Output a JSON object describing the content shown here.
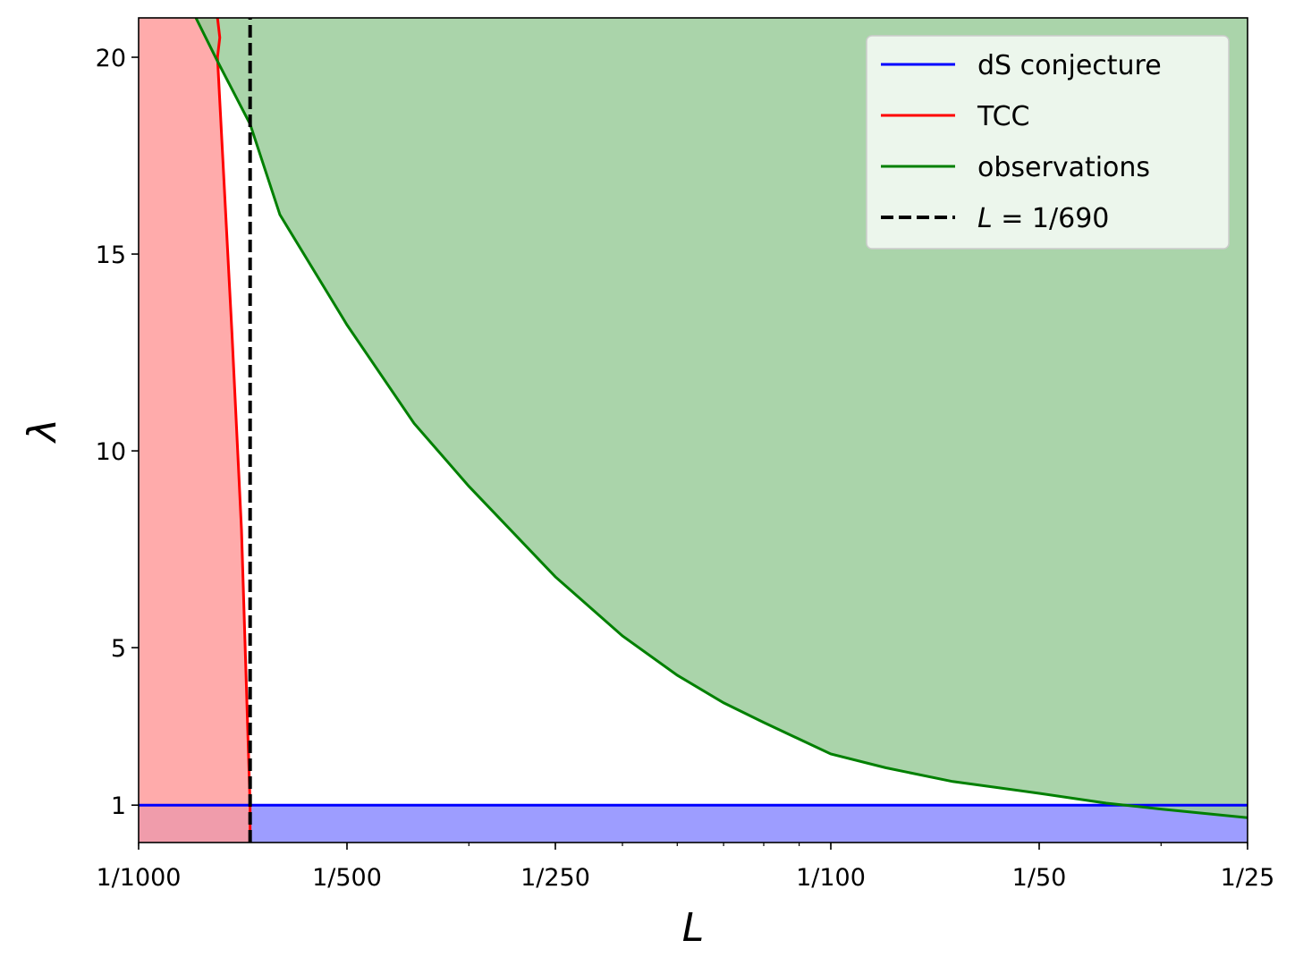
{
  "chart_data": {
    "type": "line",
    "title": "",
    "xlabel": "L",
    "ylabel": "λ",
    "x_scale": "log",
    "xlim": [
      0.001,
      0.04
    ],
    "ylim": [
      0.05,
      21.0
    ],
    "x_ticks": [
      {
        "value": 0.001,
        "label": "1/1000"
      },
      {
        "value": 0.002,
        "label": "1/500"
      },
      {
        "value": 0.004,
        "label": "1/250"
      },
      {
        "value": 0.01,
        "label": "1/100"
      },
      {
        "value": 0.02,
        "label": "1/50"
      },
      {
        "value": 0.04,
        "label": "1/25"
      }
    ],
    "y_ticks": [
      {
        "value": 1,
        "label": "1"
      },
      {
        "value": 5,
        "label": "5"
      },
      {
        "value": 10,
        "label": "10"
      },
      {
        "value": 15,
        "label": "15"
      },
      {
        "value": 20,
        "label": "20"
      }
    ],
    "grid": false,
    "legend_position": "top-right",
    "series": [
      {
        "name": "dS conjecture",
        "color": "#0000ff",
        "fill_color": "#9d9dff",
        "fill": "below",
        "style": "solid",
        "points": [
          [
            0.001,
            1.0
          ],
          [
            0.04,
            1.0
          ]
        ]
      },
      {
        "name": "TCC",
        "color": "#ff0000",
        "fill_color": "#ff9c9c",
        "fill": "left",
        "style": "solid",
        "points": [
          [
            0.0013,
            21.0
          ],
          [
            0.00131,
            20.5
          ],
          [
            0.0013,
            20.0
          ],
          [
            0.001364,
            13.0
          ],
          [
            0.001408,
            8.0
          ],
          [
            0.001449,
            1.0
          ],
          [
            0.001449,
            0.05
          ]
        ]
      },
      {
        "name": "observations",
        "color": "#008000",
        "fill_color": "#9bcc9b",
        "fill": "above",
        "style": "solid",
        "points": [
          [
            0.00121,
            21.0
          ],
          [
            0.0013,
            19.9
          ],
          [
            0.001449,
            18.3
          ],
          [
            0.0016,
            16.0
          ],
          [
            0.002,
            13.2
          ],
          [
            0.0025,
            10.7
          ],
          [
            0.003,
            9.1
          ],
          [
            0.004,
            6.8
          ],
          [
            0.005,
            5.3
          ],
          [
            0.006,
            4.3
          ],
          [
            0.007,
            3.6
          ],
          [
            0.008,
            3.1
          ],
          [
            0.01,
            2.3
          ],
          [
            0.012,
            1.95
          ],
          [
            0.015,
            1.6
          ],
          [
            0.02,
            1.3
          ],
          [
            0.025,
            1.05
          ],
          [
            0.03,
            0.9
          ],
          [
            0.04,
            0.68
          ]
        ]
      },
      {
        "name": "L = 1/690",
        "color": "#000000",
        "style": "dashed",
        "points": [
          [
            0.001449,
            0.05
          ],
          [
            0.001449,
            21.0
          ]
        ]
      }
    ],
    "legend": [
      {
        "label": "dS conjecture",
        "color": "#0000ff",
        "style": "solid"
      },
      {
        "label": "TCC",
        "color": "#ff0000",
        "style": "solid"
      },
      {
        "label": "observations",
        "color": "#008000",
        "style": "solid"
      },
      {
        "prefix": "L",
        "label": " = 1/690",
        "color": "#000000",
        "style": "dashed"
      }
    ]
  }
}
